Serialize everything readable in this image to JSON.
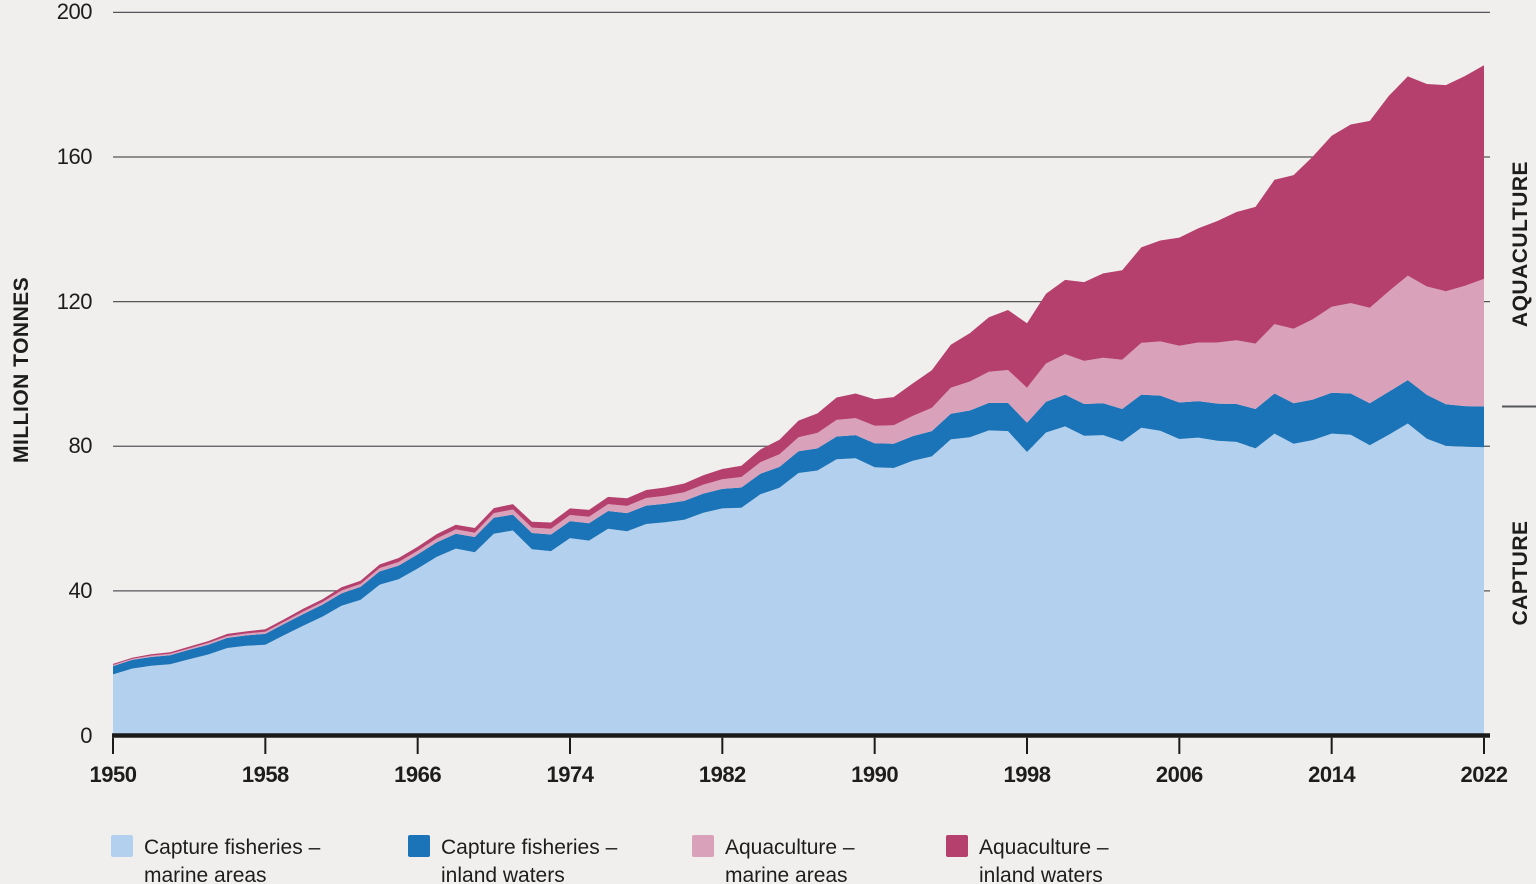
{
  "figure": {
    "background_color": "#f0efed",
    "gridline_color": "#55565a",
    "axis_color": "#1a1a1a",
    "text_color": "#1d1d1b"
  },
  "chart_data": {
    "type": "area",
    "stacked": true,
    "title": "",
    "xlabel": "",
    "ylabel": "MILLION TONNES",
    "grid": true,
    "legend_position": "bottom",
    "ylim": [
      0,
      200
    ],
    "y_ticks": [
      0,
      40,
      80,
      120,
      160,
      200
    ],
    "x_tick_labels": [
      1950,
      1958,
      1966,
      1974,
      1982,
      1990,
      1998,
      2006,
      2014,
      2022
    ],
    "x": [
      1950,
      1951,
      1952,
      1953,
      1954,
      1955,
      1956,
      1957,
      1958,
      1959,
      1960,
      1961,
      1962,
      1963,
      1964,
      1965,
      1966,
      1967,
      1968,
      1969,
      1970,
      1971,
      1972,
      1973,
      1974,
      1975,
      1976,
      1977,
      1978,
      1979,
      1980,
      1981,
      1982,
      1983,
      1984,
      1985,
      1986,
      1987,
      1988,
      1989,
      1990,
      1991,
      1992,
      1993,
      1994,
      1995,
      1996,
      1997,
      1998,
      1999,
      2000,
      2001,
      2002,
      2003,
      2004,
      2005,
      2006,
      2007,
      2008,
      2009,
      2010,
      2011,
      2012,
      2013,
      2014,
      2015,
      2016,
      2017,
      2018,
      2019,
      2020,
      2021,
      2022
    ],
    "series": [
      {
        "name": "Capture fisheries – marine areas",
        "color": "#b3d1ee",
        "values": [
          16.9,
          18.5,
          19.3,
          19.7,
          21.1,
          22.4,
          24.2,
          24.8,
          25.1,
          27.8,
          30.4,
          32.9,
          35.9,
          37.5,
          41.7,
          43.2,
          46.2,
          49.4,
          51.7,
          50.7,
          55.8,
          56.7,
          51.5,
          51.0,
          54.6,
          53.9,
          57.2,
          56.5,
          58.5,
          59.0,
          59.7,
          61.6,
          62.8,
          63.0,
          66.7,
          68.5,
          72.6,
          73.3,
          76.4,
          76.7,
          74.2,
          74.0,
          76.0,
          77.2,
          81.9,
          82.5,
          84.4,
          84.2,
          78.4,
          83.8,
          85.5,
          82.9,
          83.1,
          81.3,
          85.1,
          84.3,
          82.0,
          82.4,
          81.5,
          81.2,
          79.4,
          83.5,
          80.7,
          81.7,
          83.5,
          83.2,
          80.3,
          83.2,
          86.3,
          82.1,
          80.1,
          79.9,
          79.7
        ]
      },
      {
        "name": "Capture fisheries – inland waters",
        "color": "#1b73b8",
        "values": [
          2.3,
          2.4,
          2.4,
          2.5,
          2.6,
          2.7,
          2.8,
          2.9,
          3.0,
          3.1,
          3.2,
          3.3,
          3.4,
          3.6,
          3.7,
          3.8,
          3.9,
          4.0,
          4.1,
          4.2,
          4.4,
          4.4,
          4.5,
          4.6,
          4.7,
          4.8,
          4.9,
          5.0,
          5.1,
          5.1,
          5.2,
          5.3,
          5.4,
          5.6,
          5.7,
          5.8,
          6.0,
          6.1,
          6.3,
          6.4,
          6.6,
          6.7,
          6.8,
          7.0,
          7.1,
          7.4,
          7.6,
          7.8,
          8.1,
          8.5,
          8.8,
          8.8,
          8.8,
          9.0,
          9.2,
          9.7,
          10.1,
          10.1,
          10.3,
          10.5,
          10.9,
          11.1,
          11.2,
          11.2,
          11.3,
          11.4,
          11.6,
          11.9,
          12.0,
          12.1,
          11.5,
          11.2,
          11.3
        ]
      },
      {
        "name": "Aquaculture – marine areas",
        "color": "#d9a2ba",
        "values": [
          0.3,
          0.3,
          0.4,
          0.4,
          0.4,
          0.5,
          0.5,
          0.5,
          0.6,
          0.6,
          0.7,
          0.7,
          0.8,
          0.8,
          0.9,
          1.0,
          1.0,
          1.1,
          1.2,
          1.2,
          1.3,
          1.4,
          1.5,
          1.6,
          1.7,
          1.8,
          1.9,
          2.0,
          2.1,
          2.2,
          2.4,
          2.5,
          2.7,
          2.9,
          3.2,
          3.5,
          3.9,
          4.3,
          4.6,
          4.7,
          4.9,
          5.1,
          5.6,
          6.4,
          7.2,
          8.0,
          8.6,
          9.1,
          9.7,
          10.6,
          11.2,
          11.9,
          12.6,
          13.6,
          14.3,
          15.0,
          15.7,
          16.2,
          16.9,
          17.6,
          18.1,
          19.2,
          20.6,
          22.2,
          23.8,
          25.0,
          26.4,
          27.8,
          28.9,
          30.0,
          31.3,
          33.3,
          35.3
        ]
      },
      {
        "name": "Aquaculture – inland waters",
        "color": "#b5406d",
        "values": [
          0.3,
          0.3,
          0.4,
          0.4,
          0.5,
          0.5,
          0.6,
          0.6,
          0.7,
          0.7,
          0.8,
          0.8,
          0.9,
          0.9,
          1.0,
          1.1,
          1.1,
          1.2,
          1.3,
          1.3,
          1.4,
          1.5,
          1.6,
          1.7,
          1.8,
          1.9,
          2.0,
          2.1,
          2.2,
          2.3,
          2.4,
          2.6,
          2.8,
          3.1,
          3.5,
          4.0,
          4.6,
          5.4,
          6.2,
          6.8,
          7.3,
          7.8,
          9.0,
          10.4,
          11.9,
          13.4,
          15.1,
          16.6,
          17.8,
          19.3,
          20.5,
          21.8,
          23.3,
          24.8,
          26.4,
          27.9,
          29.9,
          31.6,
          33.6,
          35.5,
          37.8,
          39.9,
          42.5,
          45.0,
          47.3,
          49.4,
          51.7,
          54.0,
          55.1,
          56.0,
          57.0,
          58.0,
          59.1
        ]
      }
    ],
    "legend": [
      {
        "line1": "Capture fisheries –",
        "line2": "marine areas",
        "color": "#b3d1ee"
      },
      {
        "line1": "Capture fisheries –",
        "line2": "inland waters",
        "color": "#1b73b8"
      },
      {
        "line1": "Aquaculture –",
        "line2": "marine areas",
        "color": "#d9a2ba"
      },
      {
        "line1": "Aquaculture –",
        "line2": "inland waters",
        "color": "#b5406d"
      }
    ],
    "right_sections": {
      "top_label": "AQUACULTURE",
      "bottom_label": "CAPTURE",
      "divider_value": 91
    }
  }
}
